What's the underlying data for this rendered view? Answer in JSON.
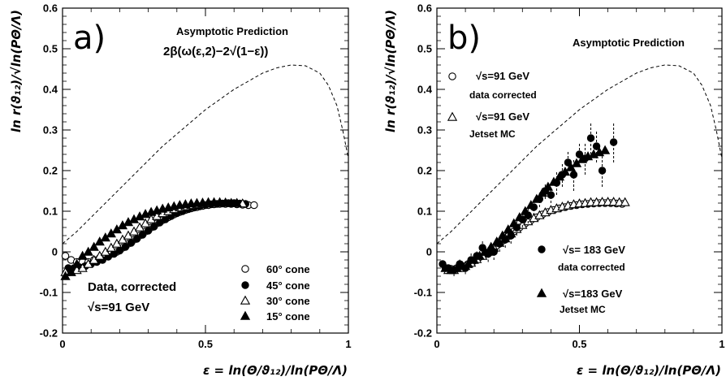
{
  "figure": {
    "background": "#ffffff",
    "ink": "#000000"
  },
  "chart_data": [
    {
      "type": "scatter",
      "panel_label": "a)",
      "xlabel": "ε = ln(Θ/ϑ₁₂)/ln(PΘ/Λ)",
      "ylabel": "ln r(ϑ₁₂)/√ln(PΘ/Λ)",
      "xlim": [
        0,
        1
      ],
      "ylim": [
        -0.2,
        0.6
      ],
      "x_ticks": [
        "0",
        "0.5",
        "1"
      ],
      "y_ticks": [
        "-0.2",
        "-0.1",
        "0",
        "0.1",
        "0.2",
        "0.3",
        "0.4",
        "0.5",
        "0.6"
      ],
      "grid": false,
      "annotations": [
        "Asymptotic Prediction",
        "2β(ω(ε,2)−2√(1−ε))",
        "Data, corrected",
        "√s=91 GeV"
      ],
      "legend": {
        "placement": "bottom-right",
        "entries": [
          "60° cone",
          "45° cone",
          "30° cone",
          "15° cone"
        ]
      },
      "curve": {
        "name": "Asymptotic Prediction",
        "style": "dashed",
        "x": [
          0.0,
          0.05,
          0.1,
          0.15,
          0.2,
          0.25,
          0.3,
          0.35,
          0.4,
          0.45,
          0.5,
          0.55,
          0.6,
          0.65,
          0.7,
          0.75,
          0.8,
          0.85,
          0.9,
          0.93,
          0.96,
          0.98,
          1.0
        ],
        "y": [
          0.02,
          0.05,
          0.085,
          0.12,
          0.155,
          0.19,
          0.225,
          0.26,
          0.29,
          0.32,
          0.35,
          0.375,
          0.4,
          0.42,
          0.44,
          0.453,
          0.46,
          0.458,
          0.44,
          0.41,
          0.36,
          0.3,
          0.23
        ]
      },
      "series": [
        {
          "name": "60° cone",
          "marker": "circle-open",
          "x": [
            0.01,
            0.03,
            0.05,
            0.07,
            0.09,
            0.11,
            0.13,
            0.15,
            0.17,
            0.19,
            0.21,
            0.23,
            0.25,
            0.27,
            0.29,
            0.31,
            0.33,
            0.35,
            0.37,
            0.39,
            0.41,
            0.43,
            0.45,
            0.47,
            0.49,
            0.51,
            0.53,
            0.55,
            0.57,
            0.59,
            0.61,
            0.63,
            0.65,
            0.67
          ],
          "y": [
            -0.01,
            -0.02,
            -0.025,
            -0.025,
            -0.025,
            -0.02,
            -0.015,
            -0.01,
            -0.005,
            0.0,
            0.01,
            0.02,
            0.03,
            0.04,
            0.05,
            0.06,
            0.07,
            0.078,
            0.085,
            0.092,
            0.098,
            0.103,
            0.107,
            0.11,
            0.113,
            0.115,
            0.117,
            0.118,
            0.118,
            0.118,
            0.117,
            0.116,
            0.115,
            0.115
          ]
        },
        {
          "name": "45° cone",
          "marker": "circle-filled",
          "x": [
            0.02,
            0.04,
            0.06,
            0.08,
            0.1,
            0.12,
            0.14,
            0.16,
            0.18,
            0.2,
            0.22,
            0.24,
            0.26,
            0.28,
            0.3,
            0.32,
            0.34,
            0.36,
            0.38,
            0.4,
            0.42,
            0.44,
            0.46,
            0.48,
            0.5,
            0.52,
            0.54,
            0.56,
            0.58,
            0.6,
            0.62,
            0.64
          ],
          "y": [
            -0.04,
            -0.04,
            -0.038,
            -0.035,
            -0.03,
            -0.025,
            -0.02,
            -0.012,
            -0.005,
            0.003,
            0.012,
            0.022,
            0.032,
            0.042,
            0.052,
            0.062,
            0.072,
            0.08,
            0.088,
            0.095,
            0.1,
            0.105,
            0.109,
            0.112,
            0.115,
            0.117,
            0.118,
            0.119,
            0.12,
            0.12,
            0.119,
            0.118
          ]
        },
        {
          "name": "30° cone",
          "marker": "triangle-open",
          "x": [
            0.01,
            0.03,
            0.05,
            0.07,
            0.09,
            0.11,
            0.13,
            0.15,
            0.17,
            0.19,
            0.21,
            0.23,
            0.25,
            0.27,
            0.29,
            0.31,
            0.33,
            0.35,
            0.37,
            0.39,
            0.41,
            0.43,
            0.45,
            0.47,
            0.49,
            0.51,
            0.53,
            0.55,
            0.57,
            0.59,
            0.61,
            0.63
          ],
          "y": [
            -0.05,
            -0.05,
            -0.045,
            -0.04,
            -0.03,
            -0.02,
            -0.01,
            0.0,
            0.01,
            0.02,
            0.03,
            0.04,
            0.05,
            0.06,
            0.07,
            0.08,
            0.088,
            0.095,
            0.1,
            0.105,
            0.109,
            0.112,
            0.115,
            0.117,
            0.119,
            0.12,
            0.121,
            0.121,
            0.121,
            0.12,
            0.12,
            0.119
          ]
        },
        {
          "name": "15° cone",
          "marker": "triangle-filled",
          "x": [
            0.01,
            0.03,
            0.05,
            0.07,
            0.09,
            0.11,
            0.13,
            0.15,
            0.17,
            0.19,
            0.21,
            0.23,
            0.25,
            0.27,
            0.29,
            0.31,
            0.33,
            0.35,
            0.37,
            0.39,
            0.41,
            0.43,
            0.45,
            0.47,
            0.49,
            0.51,
            0.53,
            0.55,
            0.57,
            0.59,
            0.61
          ],
          "y": [
            -0.06,
            -0.05,
            -0.03,
            -0.01,
            0.0,
            0.012,
            0.025,
            0.035,
            0.045,
            0.055,
            0.065,
            0.073,
            0.08,
            0.087,
            0.093,
            0.098,
            0.102,
            0.106,
            0.109,
            0.112,
            0.115,
            0.117,
            0.119,
            0.12,
            0.121,
            0.122,
            0.122,
            0.122,
            0.121,
            0.12,
            0.12
          ]
        }
      ]
    },
    {
      "type": "scatter",
      "panel_label": "b)",
      "xlabel": "ε = ln(Θ/ϑ₁₂)/ln(PΘ/Λ)",
      "ylabel": "ln r(ϑ₁₂)/√ln(PΘ/Λ)",
      "xlim": [
        0,
        1
      ],
      "ylim": [
        -0.2,
        0.6
      ],
      "x_ticks": [
        "0",
        "0.5",
        "1"
      ],
      "y_ticks": [
        "-0.2",
        "-0.1",
        "0",
        "0.1",
        "0.2",
        "0.3",
        "0.4",
        "0.5",
        "0.6"
      ],
      "grid": false,
      "annotations": [
        "Asymptotic Prediction"
      ],
      "legend": {
        "placement": "left and bottom-right",
        "entries": [
          {
            "label": "√s=91 GeV",
            "sublabel": "data corrected"
          },
          {
            "label": "√s=91 GeV",
            "sublabel": "Jetset MC"
          },
          {
            "label": "√s= 183 GeV",
            "sublabel": "data corrected"
          },
          {
            "label": "√s=183 GeV",
            "sublabel": "Jetset MC"
          }
        ]
      },
      "curve": {
        "name": "Asymptotic Prediction",
        "style": "dashed",
        "x": [
          0.0,
          0.05,
          0.1,
          0.15,
          0.2,
          0.25,
          0.3,
          0.35,
          0.4,
          0.45,
          0.5,
          0.55,
          0.6,
          0.65,
          0.7,
          0.75,
          0.8,
          0.85,
          0.9,
          0.93,
          0.96,
          0.98,
          1.0
        ],
        "y": [
          0.02,
          0.05,
          0.085,
          0.12,
          0.155,
          0.19,
          0.225,
          0.26,
          0.29,
          0.32,
          0.35,
          0.375,
          0.4,
          0.42,
          0.44,
          0.453,
          0.46,
          0.458,
          0.44,
          0.41,
          0.36,
          0.3,
          0.23
        ]
      },
      "series": [
        {
          "name": "√s=91 GeV data corrected",
          "marker": "circle-open",
          "x": [
            0.03,
            0.05,
            0.07,
            0.09,
            0.11,
            0.13,
            0.15,
            0.17,
            0.19,
            0.21,
            0.23,
            0.25,
            0.27,
            0.29,
            0.31,
            0.33,
            0.35,
            0.37,
            0.39,
            0.41,
            0.43,
            0.45,
            0.47,
            0.49,
            0.51,
            0.53,
            0.55,
            0.57,
            0.59,
            0.61,
            0.63,
            0.65
          ],
          "y": [
            -0.04,
            -0.042,
            -0.04,
            -0.035,
            -0.03,
            -0.022,
            -0.013,
            -0.005,
            0.005,
            0.015,
            0.027,
            0.038,
            0.05,
            0.06,
            0.07,
            0.078,
            0.085,
            0.092,
            0.098,
            0.103,
            0.107,
            0.11,
            0.113,
            0.115,
            0.117,
            0.118,
            0.119,
            0.12,
            0.12,
            0.12,
            0.119,
            0.118
          ]
        },
        {
          "name": "√s=91 GeV Jetset MC",
          "marker": "triangle-open",
          "x": [
            0.04,
            0.06,
            0.08,
            0.1,
            0.12,
            0.14,
            0.16,
            0.18,
            0.2,
            0.22,
            0.24,
            0.26,
            0.28,
            0.3,
            0.32,
            0.34,
            0.36,
            0.38,
            0.4,
            0.42,
            0.44,
            0.46,
            0.48,
            0.5,
            0.52,
            0.54,
            0.56,
            0.58,
            0.6,
            0.62,
            0.64,
            0.66
          ],
          "y": [
            -0.045,
            -0.045,
            -0.04,
            -0.035,
            -0.027,
            -0.018,
            -0.01,
            0.0,
            0.01,
            0.022,
            0.033,
            0.045,
            0.056,
            0.066,
            0.075,
            0.083,
            0.09,
            0.097,
            0.103,
            0.107,
            0.111,
            0.114,
            0.117,
            0.119,
            0.12,
            0.122,
            0.122,
            0.123,
            0.123,
            0.123,
            0.122,
            0.122
          ]
        },
        {
          "name": "√s= 183 GeV data corrected",
          "marker": "circle-filled",
          "x": [
            0.02,
            0.04,
            0.06,
            0.08,
            0.1,
            0.12,
            0.14,
            0.16,
            0.18,
            0.2,
            0.22,
            0.24,
            0.26,
            0.28,
            0.3,
            0.32,
            0.34,
            0.36,
            0.38,
            0.4,
            0.42,
            0.44,
            0.46,
            0.48,
            0.5,
            0.52,
            0.54,
            0.56,
            0.58,
            0.62
          ],
          "y": [
            -0.03,
            -0.04,
            -0.045,
            -0.03,
            -0.04,
            -0.02,
            -0.01,
            0.01,
            -0.005,
            0.0,
            0.02,
            0.03,
            0.04,
            0.06,
            0.08,
            0.09,
            0.11,
            0.13,
            0.15,
            0.14,
            0.17,
            0.19,
            0.22,
            0.19,
            0.24,
            0.23,
            0.28,
            0.26,
            0.2,
            0.27
          ],
          "errors": [
            0.01,
            0.01,
            0.015,
            0.015,
            0.015,
            0.02,
            0.015,
            0.02,
            0.02,
            0.02,
            0.02,
            0.02,
            0.02,
            0.02,
            0.02,
            0.02,
            0.02,
            0.02,
            0.02,
            0.02,
            0.03,
            0.03,
            0.03,
            0.04,
            0.03,
            0.04,
            0.04,
            0.04,
            0.04,
            0.05
          ]
        },
        {
          "name": "√s=183 GeV Jetset MC",
          "marker": "triangle-filled",
          "x": [
            0.03,
            0.05,
            0.07,
            0.09,
            0.11,
            0.13,
            0.15,
            0.17,
            0.19,
            0.21,
            0.23,
            0.25,
            0.27,
            0.29,
            0.31,
            0.33,
            0.35,
            0.37,
            0.39,
            0.41,
            0.43,
            0.45,
            0.47,
            0.49,
            0.51,
            0.53,
            0.55,
            0.57,
            0.59
          ],
          "y": [
            -0.04,
            -0.045,
            -0.04,
            -0.035,
            -0.03,
            -0.02,
            -0.01,
            0.0,
            0.012,
            0.025,
            0.04,
            0.055,
            0.07,
            0.085,
            0.1,
            0.115,
            0.13,
            0.145,
            0.16,
            0.172,
            0.185,
            0.197,
            0.208,
            0.218,
            0.228,
            0.235,
            0.24,
            0.245,
            0.25
          ]
        }
      ]
    }
  ]
}
